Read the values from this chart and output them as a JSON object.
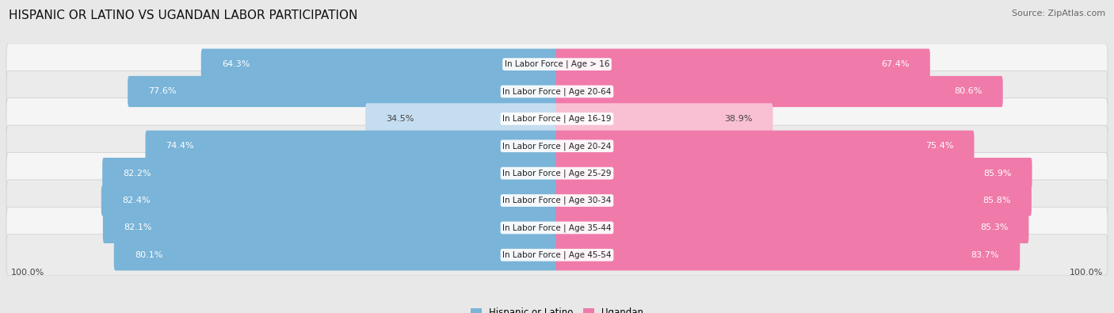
{
  "title": "HISPANIC OR LATINO VS UGANDAN LABOR PARTICIPATION",
  "source": "Source: ZipAtlas.com",
  "categories": [
    "In Labor Force | Age > 16",
    "In Labor Force | Age 20-64",
    "In Labor Force | Age 16-19",
    "In Labor Force | Age 20-24",
    "In Labor Force | Age 25-29",
    "In Labor Force | Age 30-34",
    "In Labor Force | Age 35-44",
    "In Labor Force | Age 45-54"
  ],
  "hispanic_values": [
    64.3,
    77.6,
    34.5,
    74.4,
    82.2,
    82.4,
    82.1,
    80.1
  ],
  "ugandan_values": [
    67.4,
    80.6,
    38.9,
    75.4,
    85.9,
    85.8,
    85.3,
    83.7
  ],
  "hispanic_color": "#7ab4d8",
  "ugandan_color": "#f07aaa",
  "hispanic_light_color": "#c5ddf0",
  "ugandan_light_color": "#f9c0d4",
  "bg_color": "#e8e8e8",
  "row_bg_even": "#f5f5f5",
  "row_bg_odd": "#ebebeb",
  "bar_height": 0.72,
  "x_left_label": "100.0%",
  "x_right_label": "100.0%",
  "legend_hispanic": "Hispanic or Latino",
  "legend_ugandan": "Ugandan",
  "title_fontsize": 11,
  "source_fontsize": 8,
  "bar_label_fontsize": 8,
  "category_fontsize": 7.5,
  "legend_fontsize": 8.5,
  "low_threshold": 50
}
